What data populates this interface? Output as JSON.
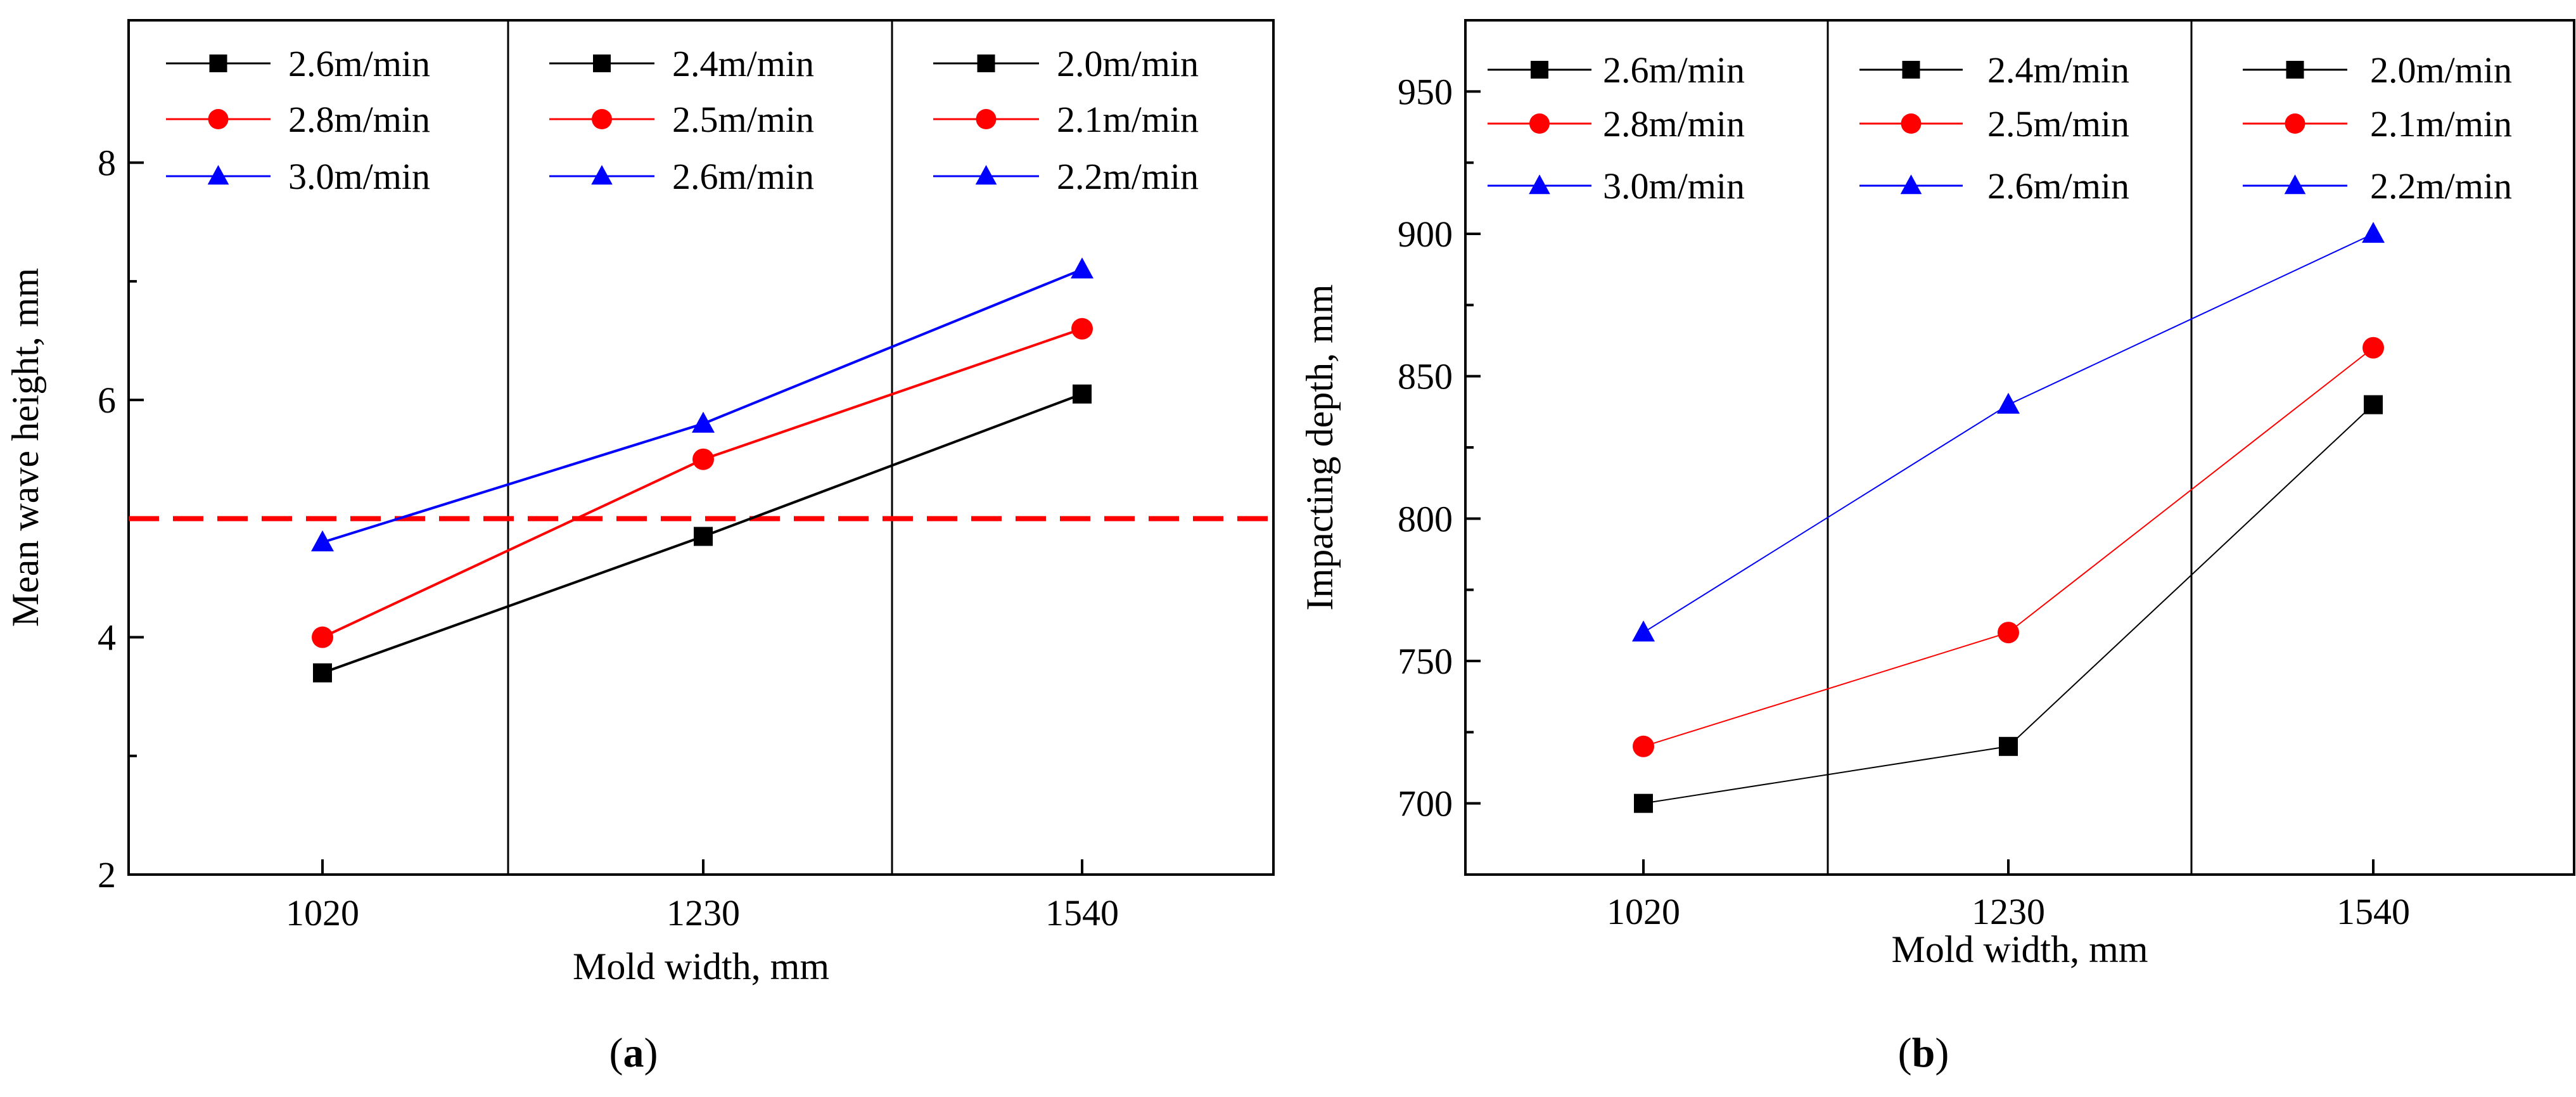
{
  "chart_data": [
    {
      "type": "line",
      "panel_label": "a",
      "xlabel": "Mold width, mm",
      "ylabel": "Mean wave height, mm",
      "categories": [
        "1020",
        "1230",
        "1540"
      ],
      "ylim": [
        2,
        9.2
      ],
      "yticks": [
        2,
        4,
        6,
        8
      ],
      "grid": false,
      "legend": "top, three columns",
      "reference_line": {
        "y": 5,
        "color": "#ff0000",
        "style": "dashed"
      },
      "series": [
        {
          "name": "2.6m/min",
          "color": "#000000",
          "marker": "square",
          "category": "1020"
        },
        {
          "name": "2.8m/min",
          "color": "#ff0000",
          "marker": "circle",
          "category": "1020"
        },
        {
          "name": "3.0m/min",
          "color": "#0000ff",
          "marker": "triangle",
          "category": "1020"
        },
        {
          "name": "2.4m/min",
          "color": "#000000",
          "marker": "square",
          "category": "1230"
        },
        {
          "name": "2.5m/min",
          "color": "#ff0000",
          "marker": "circle",
          "category": "1230"
        },
        {
          "name": "2.6m/min",
          "color": "#0000ff",
          "marker": "triangle",
          "category": "1230"
        },
        {
          "name": "2.0m/min",
          "color": "#000000",
          "marker": "square",
          "category": "1540"
        },
        {
          "name": "2.1m/min",
          "color": "#ff0000",
          "marker": "circle",
          "category": "1540"
        },
        {
          "name": "2.2m/min",
          "color": "#0000ff",
          "marker": "triangle",
          "category": "1540"
        }
      ],
      "lines": [
        {
          "color": "#000000",
          "marker": "square",
          "values": [
            3.7,
            4.85,
            6.05
          ]
        },
        {
          "color": "#ff0000",
          "marker": "circle",
          "values": [
            4.0,
            5.5,
            6.6
          ]
        },
        {
          "color": "#0000ff",
          "marker": "triangle",
          "values": [
            4.8,
            5.8,
            7.1
          ]
        }
      ]
    },
    {
      "type": "line",
      "panel_label": "b",
      "xlabel": "Mold width, mm",
      "ylabel": "Impacting depth, mm",
      "categories": [
        "1020",
        "1230",
        "1540"
      ],
      "ylim": [
        675,
        975
      ],
      "yticks": [
        700,
        750,
        800,
        850,
        900,
        950
      ],
      "grid": false,
      "legend": "top, three columns",
      "series": [
        {
          "name": "2.6m/min",
          "color": "#000000",
          "marker": "square",
          "category": "1020"
        },
        {
          "name": "2.8m/min",
          "color": "#ff0000",
          "marker": "circle",
          "category": "1020"
        },
        {
          "name": "3.0m/min",
          "color": "#0000ff",
          "marker": "triangle",
          "category": "1020"
        },
        {
          "name": "2.4m/min",
          "color": "#000000",
          "marker": "square",
          "category": "1230"
        },
        {
          "name": "2.5m/min",
          "color": "#ff0000",
          "marker": "circle",
          "category": "1230"
        },
        {
          "name": "2.6m/min",
          "color": "#0000ff",
          "marker": "triangle",
          "category": "1230"
        },
        {
          "name": "2.0m/min",
          "color": "#000000",
          "marker": "square",
          "category": "1540"
        },
        {
          "name": "2.1m/min",
          "color": "#ff0000",
          "marker": "circle",
          "category": "1540"
        },
        {
          "name": "2.2m/min",
          "color": "#0000ff",
          "marker": "triangle",
          "category": "1540"
        }
      ],
      "lines": [
        {
          "color": "#000000",
          "marker": "square",
          "values": [
            700,
            720,
            840
          ]
        },
        {
          "color": "#ff0000",
          "marker": "circle",
          "values": [
            720,
            760,
            860
          ]
        },
        {
          "color": "#0000ff",
          "marker": "triangle",
          "values": [
            760,
            840,
            900
          ]
        }
      ]
    }
  ]
}
